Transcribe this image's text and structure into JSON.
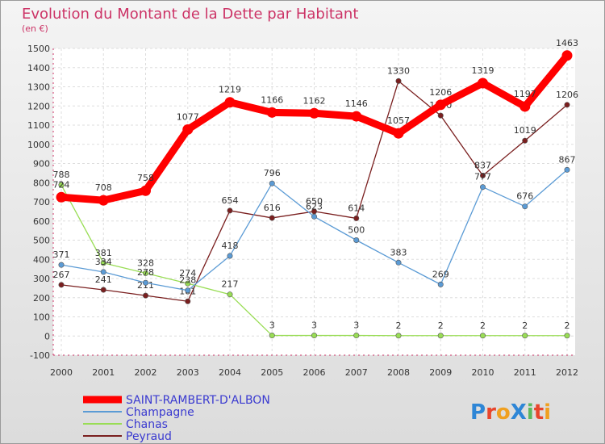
{
  "chart_data": {
    "type": "line",
    "title": "Evolution du Montant de la Dette par Habitant",
    "subtitle": "(en €)",
    "x": [
      "2000",
      "2001",
      "2002",
      "2003",
      "2004",
      "2005",
      "2006",
      "2007",
      "2008",
      "2009",
      "2010",
      "2011",
      "2012"
    ],
    "ylim": [
      -100,
      1500
    ],
    "yticks": [
      -100,
      0,
      100,
      200,
      300,
      400,
      500,
      600,
      700,
      800,
      900,
      1000,
      1100,
      1200,
      1300,
      1400,
      1500
    ],
    "grid": true,
    "legend_position": "bottom-left",
    "series": [
      {
        "name": "SAINT-RAMBERT-D'ALBON",
        "color": "#ff0000",
        "values": [
          724,
          708,
          758,
          1077,
          1219,
          1166,
          1162,
          1146,
          1057,
          1206,
          1319,
          1197,
          1463
        ],
        "labels": [
          "724",
          "708",
          "758",
          "1077",
          "1219",
          "1166",
          "1162",
          "1146",
          "1057",
          "1206",
          "1319",
          "1197",
          "1463"
        ]
      },
      {
        "name": "Champagne",
        "color": "#5b9bd5",
        "values": [
          371,
          334,
          278,
          238,
          418,
          796,
          623,
          500,
          383,
          269,
          777,
          676,
          867
        ],
        "labels": [
          "371",
          "334",
          "278",
          "238",
          "418",
          "796",
          "623",
          "500",
          "383",
          "269",
          "777",
          "676",
          "867"
        ]
      },
      {
        "name": "Chanas",
        "color": "#99dd55",
        "values": [
          788,
          381,
          328,
          274,
          217,
          3,
          3,
          3,
          2,
          2,
          2,
          2,
          2
        ],
        "labels": [
          "788",
          "381",
          "328",
          "274",
          "217",
          "3",
          "3",
          "3",
          "2",
          "2",
          "2",
          "2",
          "2"
        ]
      },
      {
        "name": "Peyraud",
        "color": "#7a1f1f",
        "values": [
          267,
          241,
          211,
          181,
          654,
          616,
          650,
          614,
          1330,
          1150,
          837,
          1019,
          1206
        ],
        "labels": [
          "267",
          "241",
          "211",
          "181",
          "654",
          "616",
          "650",
          "614",
          "1330",
          "1150",
          "837",
          "1019",
          "1206"
        ]
      }
    ]
  },
  "logo": {
    "text": "ProXiti"
  }
}
